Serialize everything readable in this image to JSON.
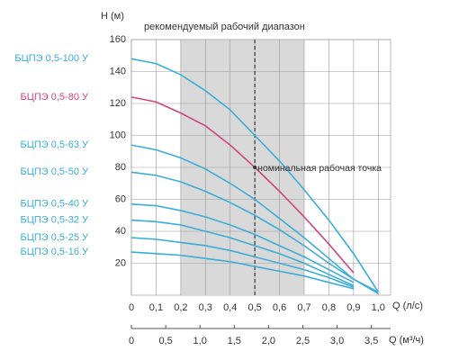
{
  "chart_data": {
    "type": "line",
    "title": "рекомендуемый рабочий диапазон",
    "y_label": "H (м)",
    "x_label": "Q (л/с)",
    "x2_label": "Q (м³/ч)",
    "x": [
      0,
      0.1,
      0.2,
      0.3,
      0.4,
      0.5,
      0.6,
      0.7,
      0.8,
      0.9,
      1.0
    ],
    "xlim": [
      0,
      1.05
    ],
    "xticks": [
      0,
      {
        "value": 0.1,
        "label": "0,1"
      },
      {
        "value": 0.2,
        "label": "0,2"
      },
      {
        "value": 0.3,
        "label": "0,3"
      },
      {
        "value": 0.4,
        "label": "0,4"
      },
      {
        "value": 0.5,
        "label": "0,5"
      },
      {
        "value": 0.6,
        "label": "0,6"
      },
      {
        "value": 0.7,
        "label": "0,7"
      },
      {
        "value": 0.8,
        "label": "0,8"
      },
      {
        "value": 0.9,
        "label": "0,9"
      },
      {
        "value": 1.0,
        "label": "1,0"
      }
    ],
    "x2lim": [
      0,
      3.78
    ],
    "x2ticks": [
      0,
      {
        "value": 0.5,
        "label": "0,5"
      },
      {
        "value": 1.0,
        "label": "1,0"
      },
      {
        "value": 1.5,
        "label": "1,5"
      },
      {
        "value": 2.0,
        "label": "2,0"
      },
      {
        "value": 2.5,
        "label": "2,5"
      },
      {
        "value": 3.0,
        "label": "3,0"
      },
      {
        "value": 3.5,
        "label": "3,5"
      }
    ],
    "ylim": [
      0,
      160
    ],
    "yticks": [
      20,
      40,
      60,
      80,
      100,
      120,
      140,
      160
    ],
    "grid": true,
    "band": {
      "range": [
        0.2,
        0.7
      ],
      "color": "#d9d9d9"
    },
    "point": {
      "x": 0.5,
      "y": 80,
      "label": "номинальная рабочая точка"
    },
    "series": [
      {
        "name": "БЦПЭ 0,5-100 У",
        "color": "#3aaed8",
        "values": [
          148,
          145,
          138,
          128,
          116,
          100,
          84,
          66,
          47,
          26,
          2
        ]
      },
      {
        "name": "БЦПЭ 0,5-80 У",
        "color": "#d0457e",
        "values": [
          124,
          121,
          114,
          106,
          94,
          80,
          65,
          49,
          32,
          14,
          null
        ]
      },
      {
        "name": "БЦПЭ 0,5-63 У",
        "color": "#3aaed8",
        "values": [
          94,
          91,
          86,
          79,
          70,
          60,
          48,
          36,
          23,
          10,
          2
        ]
      },
      {
        "name": "БЦПЭ 0,5-50 У",
        "color": "#3aaed8",
        "values": [
          77,
          75,
          71,
          65,
          58,
          50,
          41,
          31,
          20,
          10,
          1
        ]
      },
      {
        "name": "БЦПЭ 0,5-40 У",
        "color": "#3aaed8",
        "values": [
          57,
          56,
          53,
          49,
          44,
          38,
          31,
          24,
          16,
          8,
          null
        ]
      },
      {
        "name": "БЦПЭ 0,5-32 У",
        "color": "#3aaed8",
        "values": [
          47,
          46,
          44,
          40,
          36,
          31,
          26,
          20,
          13,
          6,
          null
        ]
      },
      {
        "name": "БЦПЭ 0,5-25 У",
        "color": "#3aaed8",
        "values": [
          36,
          35,
          33,
          31,
          28,
          24,
          20,
          16,
          11,
          5,
          null
        ]
      },
      {
        "name": "БЦПЭ 0,5-16 У",
        "color": "#3aaed8",
        "values": [
          27,
          26,
          25,
          23,
          21,
          18,
          15,
          12,
          8,
          4,
          null
        ]
      }
    ]
  }
}
